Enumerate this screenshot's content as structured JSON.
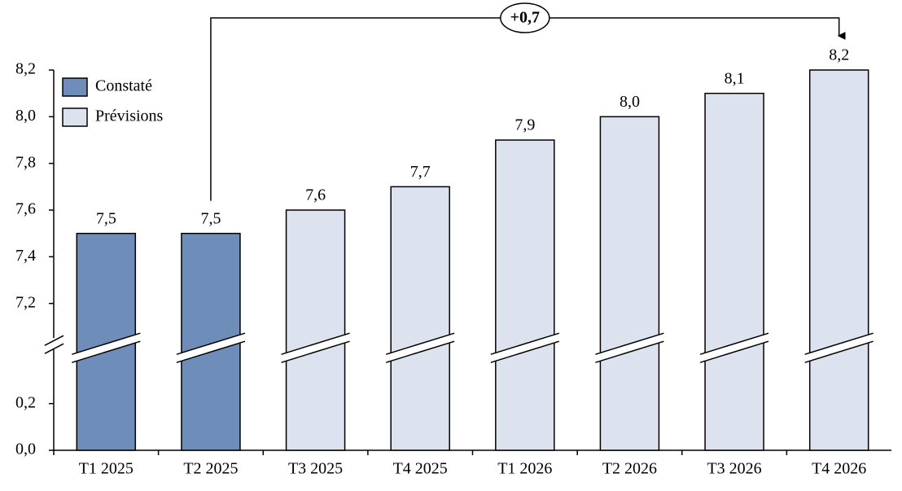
{
  "chart_data": {
    "type": "bar",
    "categories": [
      "T1 2025",
      "T2 2025",
      "T3 2025",
      "T4 2025",
      "T1 2026",
      "T2 2026",
      "T3 2026",
      "T4 2026"
    ],
    "series": [
      {
        "name": "Constaté",
        "color": "#6e8db9",
        "values": [
          7.5,
          7.5,
          null,
          null,
          null,
          null,
          null,
          null
        ],
        "value_labels": [
          "7,5",
          "7,5",
          null,
          null,
          null,
          null,
          null,
          null
        ]
      },
      {
        "name": "Prévisions",
        "color": "#dde3ee",
        "values": [
          null,
          null,
          7.6,
          7.7,
          7.9,
          8.0,
          8.1,
          8.2
        ],
        "value_labels": [
          null,
          null,
          "7,6",
          "7,7",
          "7,9",
          "8,0",
          "8,1",
          "8,2"
        ]
      }
    ],
    "ylim": [
      0,
      8.2
    ],
    "yticks": [
      {
        "value": 0,
        "label": "0,0"
      },
      {
        "value": 0.2,
        "label": "0,2"
      },
      {
        "value": 7.2,
        "label": "7,2"
      },
      {
        "value": 7.4,
        "label": "7,4"
      },
      {
        "value": 7.6,
        "label": "7,6"
      },
      {
        "value": 7.8,
        "label": "7,8"
      },
      {
        "value": 8.0,
        "label": "8,0"
      },
      {
        "value": 8.2,
        "label": "8,2"
      }
    ],
    "annotation": "+0,7",
    "legend": "top-left"
  }
}
